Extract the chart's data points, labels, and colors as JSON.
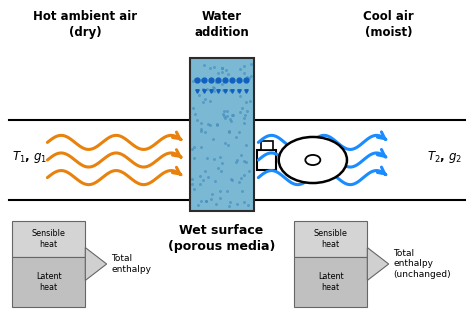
{
  "bg_color": "#ffffff",
  "orange_color": "#e8820c",
  "blue_color": "#1a8cff",
  "wet_surface_color": "#7ab8d4",
  "wet_surface_border": "#2c2c2c",
  "text_hot": "Hot ambient air\n(dry)",
  "text_cool": "Cool air\n(moist)",
  "text_water": "Water\naddition",
  "text_wet": "Wet surface\n(porous media)",
  "text_total_left": "Total\nenthalpy",
  "text_total_right": "Total\nenthalpy\n(unchanged)",
  "fig_w": 4.74,
  "fig_h": 3.2,
  "dpi": 100
}
